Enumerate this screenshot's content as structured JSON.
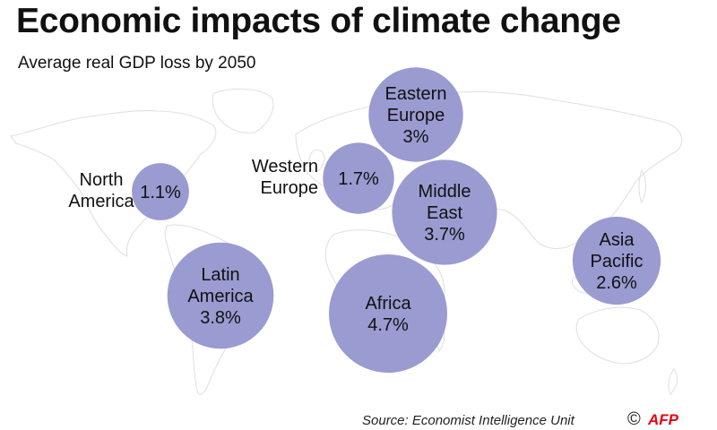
{
  "title": "Economic impacts of climate change",
  "subtitle": "Average real GDP loss by 2050",
  "source": "Source: Economist Intelligence Unit",
  "copyright": "©",
  "logo_text": "AFP",
  "colors": {
    "bubble": "#9a9bd1",
    "map_outline": "#e1e1e1",
    "logo": "#e30613"
  },
  "chart_data": {
    "type": "bubble-map",
    "title": "Economic impacts of climate change",
    "subtitle": "Average real GDP loss by 2050",
    "unit": "%",
    "regions": [
      {
        "name": "North America",
        "value": 1.1,
        "label": "1.1%",
        "name_lines": [
          "North",
          "America"
        ]
      },
      {
        "name": "Western Europe",
        "value": 1.7,
        "label": "1.7%",
        "name_lines": [
          "Western",
          "Europe"
        ]
      },
      {
        "name": "Eastern Europe",
        "value": 3.0,
        "label": "3%",
        "name_lines": [
          "Eastern",
          "Europe"
        ]
      },
      {
        "name": "Middle East",
        "value": 3.7,
        "label": "3.7%",
        "name_lines": [
          "Middle",
          "East"
        ]
      },
      {
        "name": "Latin America",
        "value": 3.8,
        "label": "3.8%",
        "name_lines": [
          "Latin",
          "America"
        ]
      },
      {
        "name": "Africa",
        "value": 4.7,
        "label": "4.7%",
        "name_lines": [
          "Africa"
        ]
      },
      {
        "name": "Asia Pacific",
        "value": 2.6,
        "label": "2.6%",
        "name_lines": [
          "Asia",
          "Pacific"
        ]
      }
    ]
  }
}
